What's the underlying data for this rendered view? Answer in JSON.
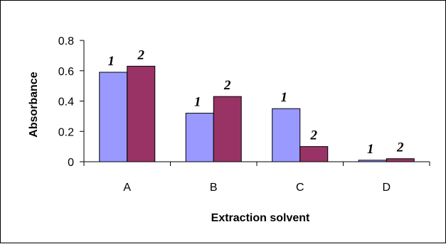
{
  "chart_data": {
    "type": "bar",
    "categories": [
      "A",
      "B",
      "C",
      "D"
    ],
    "series": [
      {
        "values": [
          0.59,
          0.32,
          0.35,
          0.01
        ],
        "label": "1",
        "color": "#9999ff"
      },
      {
        "values": [
          0.63,
          0.43,
          0.1,
          0.02
        ],
        "label": "2",
        "color": "#993366"
      }
    ],
    "title": "",
    "xlabel": "Extraction solvent",
    "ylabel": "Absorbance",
    "ylim": [
      0,
      0.8
    ],
    "yticks": [
      "0",
      "0.2",
      "0.4",
      "0.6",
      "0.8"
    ],
    "grid": false,
    "legend": "none"
  }
}
